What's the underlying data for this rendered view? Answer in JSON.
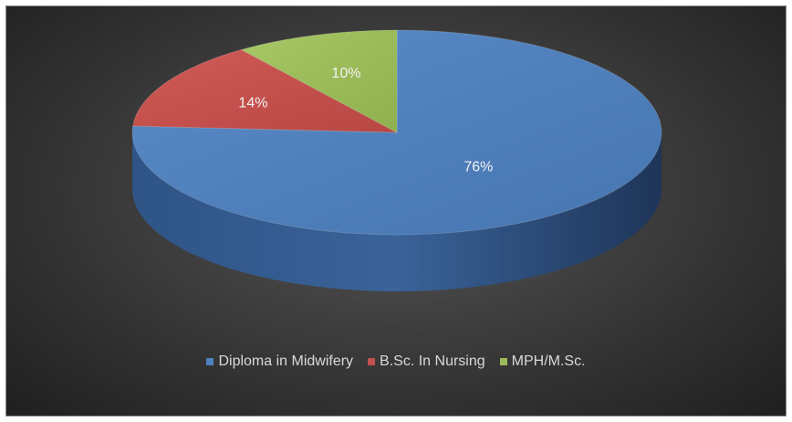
{
  "chart_data": {
    "type": "pie",
    "style": "3d",
    "categories": [
      "Diploma in Midwifery",
      "B.Sc. In Nursing",
      "MPH/M.Sc."
    ],
    "values": [
      76,
      14,
      10
    ],
    "data_labels": [
      "76%",
      "14%",
      "10%"
    ],
    "colors": [
      "#4f81bd",
      "#c0504d",
      "#9bbb59"
    ],
    "legend_position": "bottom",
    "title": ""
  }
}
